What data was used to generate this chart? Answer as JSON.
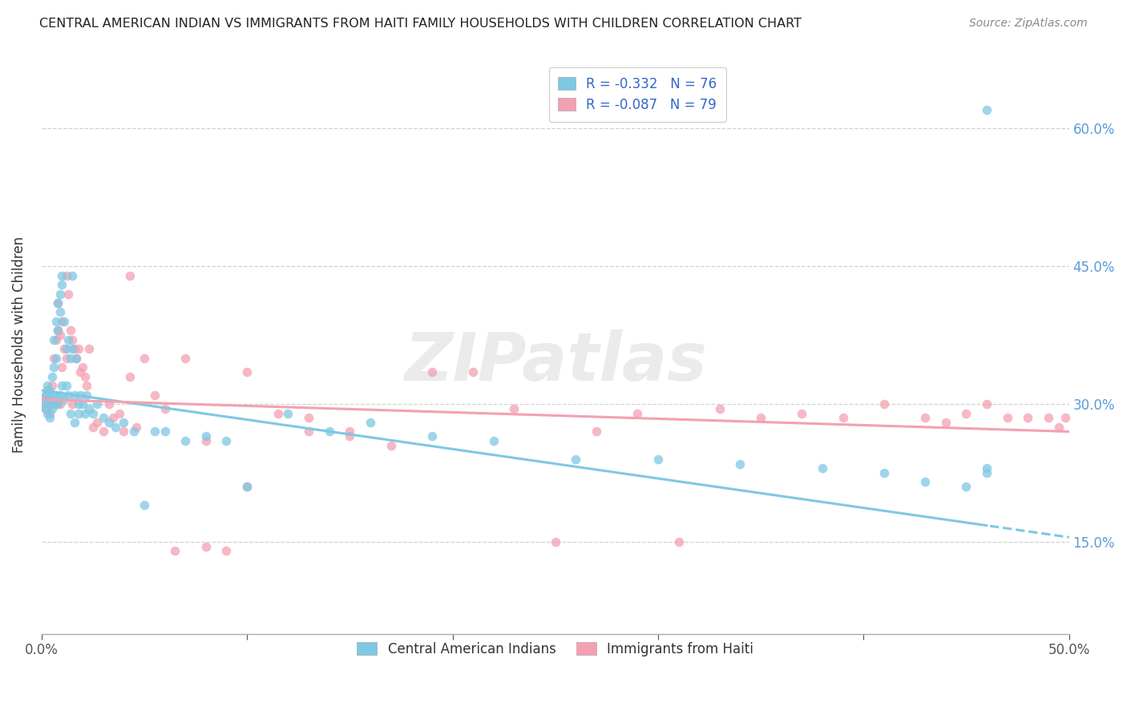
{
  "title": "CENTRAL AMERICAN INDIAN VS IMMIGRANTS FROM HAITI FAMILY HOUSEHOLDS WITH CHILDREN CORRELATION CHART",
  "source": "Source: ZipAtlas.com",
  "ylabel": "Family Households with Children",
  "xlim": [
    0.0,
    0.5
  ],
  "ylim": [
    0.05,
    0.68
  ],
  "yticks_right": [
    0.15,
    0.3,
    0.45,
    0.6
  ],
  "ytick_labels_right": [
    "15.0%",
    "30.0%",
    "45.0%",
    "60.0%"
  ],
  "legend_label1": "R = -0.332   N = 76",
  "legend_label2": "R = -0.087   N = 79",
  "legend_bottom_label1": "Central American Indians",
  "legend_bottom_label2": "Immigrants from Haiti",
  "color_blue": "#7ec8e3",
  "color_pink": "#f4a0b0",
  "background": "#ffffff",
  "grid_color": "#d0d0d0",
  "watermark": "ZIPatlas",
  "blue_scatter_x": [
    0.001,
    0.002,
    0.002,
    0.003,
    0.003,
    0.003,
    0.004,
    0.004,
    0.004,
    0.005,
    0.005,
    0.005,
    0.006,
    0.006,
    0.006,
    0.007,
    0.007,
    0.007,
    0.008,
    0.008,
    0.008,
    0.009,
    0.009,
    0.009,
    0.01,
    0.01,
    0.01,
    0.011,
    0.011,
    0.012,
    0.012,
    0.013,
    0.013,
    0.014,
    0.014,
    0.015,
    0.015,
    0.016,
    0.016,
    0.017,
    0.018,
    0.018,
    0.019,
    0.02,
    0.021,
    0.022,
    0.023,
    0.025,
    0.027,
    0.03,
    0.033,
    0.036,
    0.04,
    0.045,
    0.05,
    0.055,
    0.06,
    0.07,
    0.08,
    0.09,
    0.1,
    0.12,
    0.14,
    0.16,
    0.19,
    0.22,
    0.26,
    0.3,
    0.34,
    0.38,
    0.41,
    0.43,
    0.45,
    0.46,
    0.46,
    0.46
  ],
  "blue_scatter_y": [
    0.3,
    0.31,
    0.295,
    0.305,
    0.32,
    0.29,
    0.315,
    0.3,
    0.285,
    0.31,
    0.33,
    0.295,
    0.34,
    0.37,
    0.3,
    0.35,
    0.39,
    0.31,
    0.38,
    0.41,
    0.3,
    0.4,
    0.42,
    0.31,
    0.43,
    0.44,
    0.32,
    0.39,
    0.305,
    0.36,
    0.32,
    0.37,
    0.31,
    0.35,
    0.29,
    0.44,
    0.36,
    0.31,
    0.28,
    0.35,
    0.3,
    0.29,
    0.31,
    0.3,
    0.29,
    0.31,
    0.295,
    0.29,
    0.3,
    0.285,
    0.28,
    0.275,
    0.28,
    0.27,
    0.19,
    0.27,
    0.27,
    0.26,
    0.265,
    0.26,
    0.21,
    0.29,
    0.27,
    0.28,
    0.265,
    0.26,
    0.24,
    0.24,
    0.235,
    0.23,
    0.225,
    0.215,
    0.21,
    0.23,
    0.225,
    0.62
  ],
  "pink_scatter_x": [
    0.001,
    0.002,
    0.002,
    0.003,
    0.004,
    0.004,
    0.005,
    0.005,
    0.006,
    0.007,
    0.007,
    0.008,
    0.008,
    0.009,
    0.009,
    0.01,
    0.01,
    0.011,
    0.012,
    0.012,
    0.013,
    0.014,
    0.015,
    0.015,
    0.016,
    0.017,
    0.018,
    0.019,
    0.02,
    0.021,
    0.022,
    0.023,
    0.025,
    0.027,
    0.03,
    0.033,
    0.035,
    0.038,
    0.04,
    0.043,
    0.046,
    0.05,
    0.055,
    0.06,
    0.065,
    0.07,
    0.08,
    0.09,
    0.1,
    0.115,
    0.13,
    0.15,
    0.17,
    0.19,
    0.21,
    0.23,
    0.25,
    0.27,
    0.29,
    0.31,
    0.33,
    0.35,
    0.37,
    0.39,
    0.41,
    0.43,
    0.45,
    0.46,
    0.47,
    0.48,
    0.49,
    0.495,
    0.498,
    0.043,
    0.08,
    0.1,
    0.13,
    0.15,
    0.44
  ],
  "pink_scatter_y": [
    0.3,
    0.31,
    0.295,
    0.315,
    0.29,
    0.305,
    0.32,
    0.3,
    0.35,
    0.37,
    0.3,
    0.38,
    0.41,
    0.375,
    0.3,
    0.39,
    0.34,
    0.36,
    0.35,
    0.44,
    0.42,
    0.38,
    0.37,
    0.3,
    0.36,
    0.35,
    0.36,
    0.335,
    0.34,
    0.33,
    0.32,
    0.36,
    0.275,
    0.28,
    0.27,
    0.3,
    0.285,
    0.29,
    0.27,
    0.33,
    0.275,
    0.35,
    0.31,
    0.295,
    0.14,
    0.35,
    0.145,
    0.14,
    0.21,
    0.29,
    0.285,
    0.27,
    0.255,
    0.335,
    0.335,
    0.295,
    0.15,
    0.27,
    0.29,
    0.15,
    0.295,
    0.285,
    0.29,
    0.285,
    0.3,
    0.285,
    0.29,
    0.3,
    0.285,
    0.285,
    0.285,
    0.275,
    0.285,
    0.44,
    0.26,
    0.335,
    0.27,
    0.265,
    0.28
  ]
}
